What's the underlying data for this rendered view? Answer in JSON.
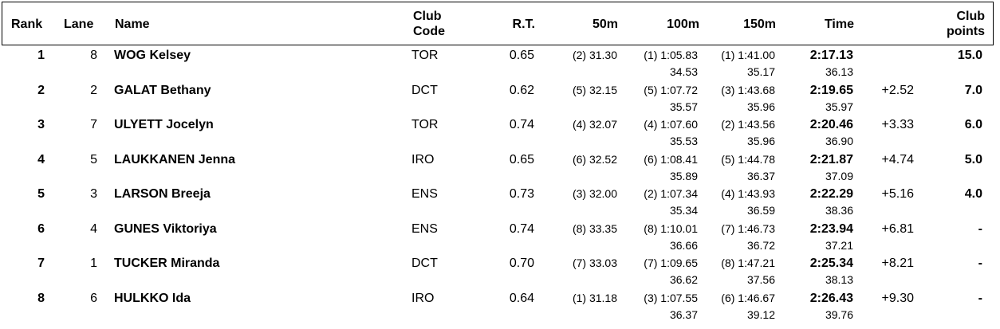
{
  "headers": {
    "rank": "Rank",
    "lane": "Lane",
    "name": "Name",
    "club_code_1": "Club",
    "club_code_2": "Code",
    "rt": "R.T.",
    "s50": "50m",
    "s100": "100m",
    "s150": "150m",
    "time": "Time",
    "club_points_1": "Club",
    "club_points_2": "points"
  },
  "rows": [
    {
      "rank": "1",
      "lane": "8",
      "name": "WOG Kelsey",
      "club": "TOR",
      "rt": "0.65",
      "s50": "(2) 31.30",
      "s100": "(1) 1:05.83",
      "s100_split": "34.53",
      "s150": "(1) 1:41.00",
      "s150_split": "35.17",
      "time": "2:17.13",
      "time_split": "36.13",
      "behind": "",
      "points": "15.0"
    },
    {
      "rank": "2",
      "lane": "2",
      "name": "GALAT Bethany",
      "club": "DCT",
      "rt": "0.62",
      "s50": "(5) 32.15",
      "s100": "(5) 1:07.72",
      "s100_split": "35.57",
      "s150": "(3) 1:43.68",
      "s150_split": "35.96",
      "time": "2:19.65",
      "time_split": "35.97",
      "behind": "+2.52",
      "points": "7.0"
    },
    {
      "rank": "3",
      "lane": "7",
      "name": "ULYETT Jocelyn",
      "club": "TOR",
      "rt": "0.74",
      "s50": "(4) 32.07",
      "s100": "(4) 1:07.60",
      "s100_split": "35.53",
      "s150": "(2) 1:43.56",
      "s150_split": "35.96",
      "time": "2:20.46",
      "time_split": "36.90",
      "behind": "+3.33",
      "points": "6.0"
    },
    {
      "rank": "4",
      "lane": "5",
      "name": "LAUKKANEN Jenna",
      "club": "IRO",
      "rt": "0.65",
      "s50": "(6) 32.52",
      "s100": "(6) 1:08.41",
      "s100_split": "35.89",
      "s150": "(5) 1:44.78",
      "s150_split": "36.37",
      "time": "2:21.87",
      "time_split": "37.09",
      "behind": "+4.74",
      "points": "5.0"
    },
    {
      "rank": "5",
      "lane": "3",
      "name": "LARSON Breeja",
      "club": "ENS",
      "rt": "0.73",
      "s50": "(3) 32.00",
      "s100": "(2) 1:07.34",
      "s100_split": "35.34",
      "s150": "(4) 1:43.93",
      "s150_split": "36.59",
      "time": "2:22.29",
      "time_split": "38.36",
      "behind": "+5.16",
      "points": "4.0"
    },
    {
      "rank": "6",
      "lane": "4",
      "name": "GUNES Viktoriya",
      "club": "ENS",
      "rt": "0.74",
      "s50": "(8) 33.35",
      "s100": "(8) 1:10.01",
      "s100_split": "36.66",
      "s150": "(7) 1:46.73",
      "s150_split": "36.72",
      "time": "2:23.94",
      "time_split": "37.21",
      "behind": "+6.81",
      "points": "-"
    },
    {
      "rank": "7",
      "lane": "1",
      "name": "TUCKER Miranda",
      "club": "DCT",
      "rt": "0.70",
      "s50": "(7) 33.03",
      "s100": "(7) 1:09.65",
      "s100_split": "36.62",
      "s150": "(8) 1:47.21",
      "s150_split": "37.56",
      "time": "2:25.34",
      "time_split": "38.13",
      "behind": "+8.21",
      "points": "-"
    },
    {
      "rank": "8",
      "lane": "6",
      "name": "HULKKO Ida",
      "club": "IRO",
      "rt": "0.64",
      "s50": "(1) 31.18",
      "s100": "(3) 1:07.55",
      "s100_split": "36.37",
      "s150": "(6) 1:46.67",
      "s150_split": "39.12",
      "time": "2:26.43",
      "time_split": "39.76",
      "behind": "+9.30",
      "points": "-"
    }
  ]
}
